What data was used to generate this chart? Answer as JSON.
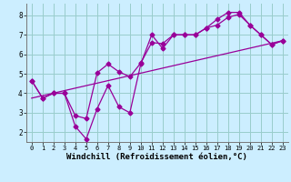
{
  "xlabel": "Windchill (Refroidissement éolien,°C)",
  "bg_color": "#cceeff",
  "line_color": "#990099",
  "grid_color": "#99cccc",
  "xlim": [
    -0.5,
    23.5
  ],
  "ylim": [
    1.5,
    8.6
  ],
  "yticks": [
    2,
    3,
    4,
    5,
    6,
    7,
    8
  ],
  "xticks": [
    0,
    1,
    2,
    3,
    4,
    5,
    6,
    7,
    8,
    9,
    10,
    11,
    12,
    13,
    14,
    15,
    16,
    17,
    18,
    19,
    20,
    21,
    22,
    23
  ],
  "series1_x": [
    0,
    1,
    2,
    3,
    4,
    5,
    6,
    7,
    8,
    9,
    10,
    11,
    12,
    13,
    14,
    15,
    16,
    17,
    18,
    19,
    20,
    21,
    22,
    23
  ],
  "series1_y": [
    4.65,
    3.75,
    4.0,
    4.0,
    2.3,
    1.65,
    3.2,
    4.4,
    3.3,
    3.0,
    5.5,
    7.0,
    6.3,
    7.0,
    7.0,
    7.0,
    7.35,
    7.8,
    8.15,
    8.15,
    7.5,
    7.0,
    6.5,
    6.7
  ],
  "series2_x": [
    0,
    1,
    2,
    3,
    4,
    5,
    6,
    7,
    8,
    9,
    10,
    11,
    12,
    13,
    14,
    15,
    16,
    17,
    18,
    19,
    20,
    21,
    22,
    23
  ],
  "series2_y": [
    4.65,
    3.75,
    4.0,
    4.0,
    2.85,
    2.7,
    5.05,
    5.5,
    5.1,
    4.85,
    5.55,
    6.6,
    6.55,
    7.0,
    7.0,
    7.0,
    7.35,
    7.5,
    7.9,
    8.05,
    7.5,
    7.0,
    6.5,
    6.7
  ],
  "series3_x": [
    0,
    23
  ],
  "series3_y": [
    3.75,
    6.7
  ],
  "tick_fontsize": 5.5,
  "xlabel_fontsize": 6.5
}
